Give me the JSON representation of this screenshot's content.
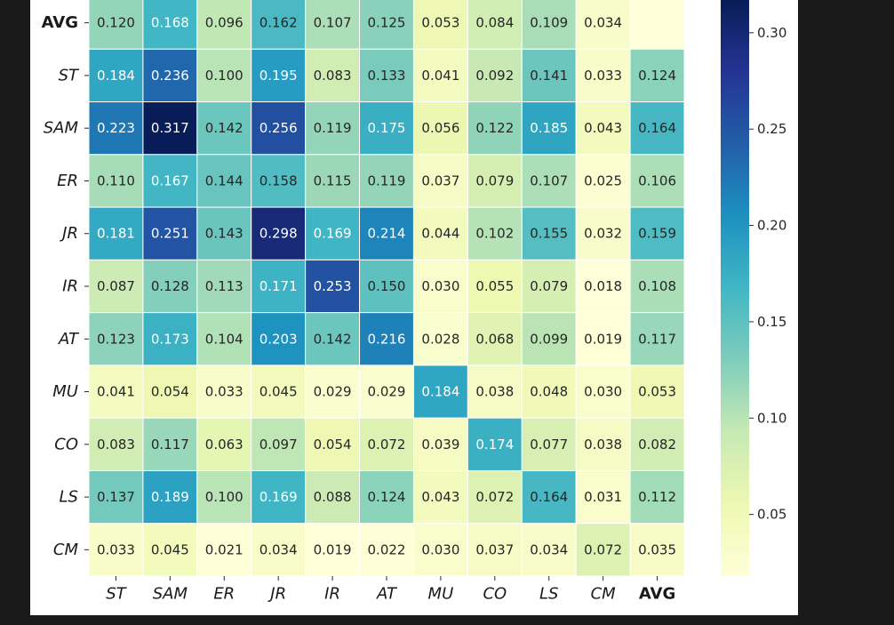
{
  "chart_data": {
    "type": "heatmap",
    "row_labels": [
      "AVG",
      "ST",
      "SAM",
      "ER",
      "JR",
      "IR",
      "AT",
      "MU",
      "CO",
      "LS",
      "CM"
    ],
    "col_labels": [
      "ST",
      "SAM",
      "ER",
      "JR",
      "IR",
      "AT",
      "MU",
      "CO",
      "LS",
      "CM",
      "AVG"
    ],
    "bold_labels": [
      "AVG"
    ],
    "values": [
      [
        0.12,
        0.168,
        0.096,
        0.162,
        0.107,
        0.125,
        0.053,
        0.084,
        0.109,
        0.034,
        null
      ],
      [
        0.184,
        0.236,
        0.1,
        0.195,
        0.083,
        0.133,
        0.041,
        0.092,
        0.141,
        0.033,
        0.124
      ],
      [
        0.223,
        0.317,
        0.142,
        0.256,
        0.119,
        0.175,
        0.056,
        0.122,
        0.185,
        0.043,
        0.164
      ],
      [
        0.11,
        0.167,
        0.144,
        0.158,
        0.115,
        0.119,
        0.037,
        0.079,
        0.107,
        0.025,
        0.106
      ],
      [
        0.181,
        0.251,
        0.143,
        0.298,
        0.169,
        0.214,
        0.044,
        0.102,
        0.155,
        0.032,
        0.159
      ],
      [
        0.087,
        0.128,
        0.113,
        0.171,
        0.253,
        0.15,
        0.03,
        0.055,
        0.079,
        0.018,
        0.108
      ],
      [
        0.123,
        0.173,
        0.104,
        0.203,
        0.142,
        0.216,
        0.028,
        0.068,
        0.099,
        0.019,
        0.117
      ],
      [
        0.041,
        0.054,
        0.033,
        0.045,
        0.029,
        0.029,
        0.184,
        0.038,
        0.048,
        0.03,
        0.053
      ],
      [
        0.083,
        0.117,
        0.063,
        0.097,
        0.054,
        0.072,
        0.039,
        0.174,
        0.077,
        0.038,
        0.082
      ],
      [
        0.137,
        0.189,
        0.1,
        0.169,
        0.088,
        0.124,
        0.043,
        0.072,
        0.164,
        0.031,
        0.112
      ],
      [
        0.033,
        0.045,
        0.021,
        0.034,
        0.019,
        0.022,
        0.03,
        0.037,
        0.034,
        0.072,
        0.035
      ]
    ],
    "missing_cell_color": "#ffffd9",
    "colormap": "YlGnBu",
    "colormap_stops": [
      "#ffffd9",
      "#edf8b1",
      "#c7e9b4",
      "#7fcdbb",
      "#41b6c4",
      "#1d91c0",
      "#225ea8",
      "#253494",
      "#081d58"
    ],
    "vmin": 0.018,
    "vmax": 0.317,
    "colorbar_ticks": [
      0.05,
      0.1,
      0.15,
      0.2,
      0.25,
      0.3
    ],
    "colorbar_tick_labels": [
      "0.05",
      "0.10",
      "0.15",
      "0.20",
      "0.25",
      "0.30"
    ],
    "value_format_decimals": 3
  }
}
